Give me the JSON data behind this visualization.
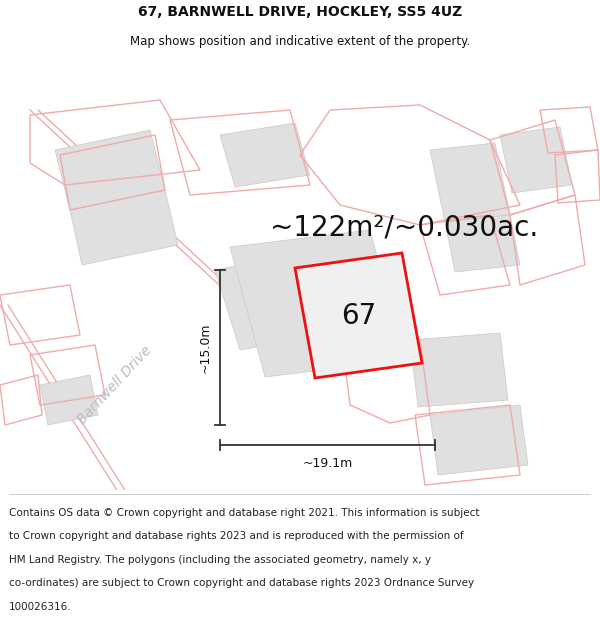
{
  "title": "67, BARNWELL DRIVE, HOCKLEY, SS5 4UZ",
  "subtitle": "Map shows position and indicative extent of the property.",
  "area_text": "~122m²/~0.030ac.",
  "dim_width": "~19.1m",
  "dim_height": "~15.0m",
  "label_67": "67",
  "barnwell_drive_label": "Barnwell Drive",
  "footer_lines": [
    "Contains OS data © Crown copyright and database right 2021. This information is subject",
    "to Crown copyright and database rights 2023 and is reproduced with the permission of",
    "HM Land Registry. The polygons (including the associated geometry, namely x, y",
    "co-ordinates) are subject to Crown copyright and database rights 2023 Ordnance Survey",
    "100026316."
  ],
  "bg_color": "#ffffff",
  "map_bg_color": "#ffffff",
  "property_fill": "#ebebeb",
  "property_edge_color": "#ee1111",
  "light_pink": "#f0aaaa",
  "gray_fill": "#e0e0e0",
  "gray_edge": "#c8c8c8",
  "title_fontsize": 10,
  "subtitle_fontsize": 8.5,
  "area_fontsize": 20,
  "label_fontsize": 20,
  "barnwell_fontsize": 10,
  "dim_fontsize": 9,
  "footer_fontsize": 7.5
}
